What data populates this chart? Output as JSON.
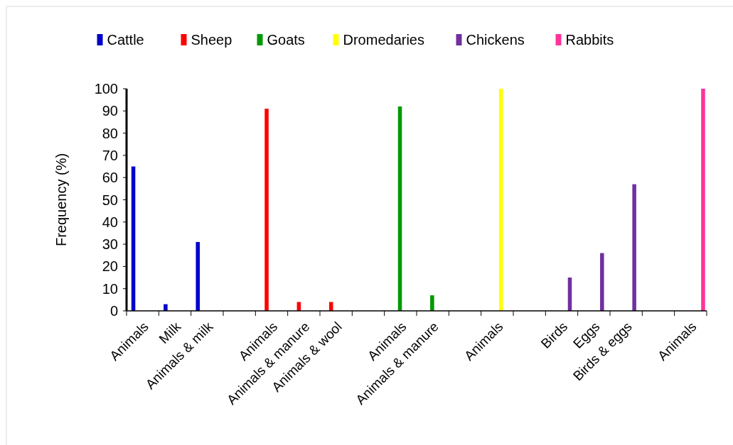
{
  "chart_data": {
    "type": "bar",
    "ylabel": "Frequency (%)",
    "categories": [
      "Animals",
      "Milk",
      "Animals & milk",
      null,
      "Animals",
      "Animals & manure",
      "Animals & wool",
      null,
      "Animals",
      "Animals & manure",
      null,
      "Animals",
      null,
      "Birds",
      "Eggs",
      "Birds & eggs",
      null,
      "Animals"
    ],
    "series": [
      {
        "name": "Cattle",
        "color": "#0000cc",
        "values": [
          65,
          3,
          31,
          null,
          null,
          null,
          null,
          null,
          null,
          null,
          null,
          null,
          null,
          null,
          null,
          null,
          null,
          null
        ]
      },
      {
        "name": "Sheep",
        "color": "#ff0000",
        "values": [
          null,
          null,
          null,
          null,
          91,
          4,
          4,
          null,
          null,
          null,
          null,
          null,
          null,
          null,
          null,
          null,
          null,
          null
        ]
      },
      {
        "name": "Goats",
        "color": "#009900",
        "values": [
          null,
          null,
          null,
          null,
          null,
          null,
          null,
          null,
          92,
          7,
          null,
          null,
          null,
          null,
          null,
          null,
          null,
          null
        ]
      },
      {
        "name": "Dromedaries",
        "color": "#ffff00",
        "values": [
          null,
          null,
          null,
          null,
          null,
          null,
          null,
          null,
          null,
          null,
          null,
          100,
          null,
          null,
          null,
          null,
          null,
          null
        ]
      },
      {
        "name": "Chickens",
        "color": "#7030a0",
        "values": [
          null,
          null,
          null,
          null,
          null,
          null,
          null,
          null,
          null,
          null,
          null,
          null,
          null,
          15,
          26,
          57,
          null,
          null
        ]
      },
      {
        "name": "Rabbits",
        "color": "#ff3399",
        "values": [
          null,
          null,
          null,
          null,
          null,
          null,
          null,
          null,
          null,
          null,
          null,
          null,
          null,
          null,
          null,
          null,
          null,
          100
        ]
      }
    ],
    "ylim": [
      0,
      100
    ],
    "yticks": [
      0,
      10,
      20,
      30,
      40,
      50,
      60,
      70,
      80,
      90,
      100
    ],
    "grid": false,
    "legend": "top"
  }
}
